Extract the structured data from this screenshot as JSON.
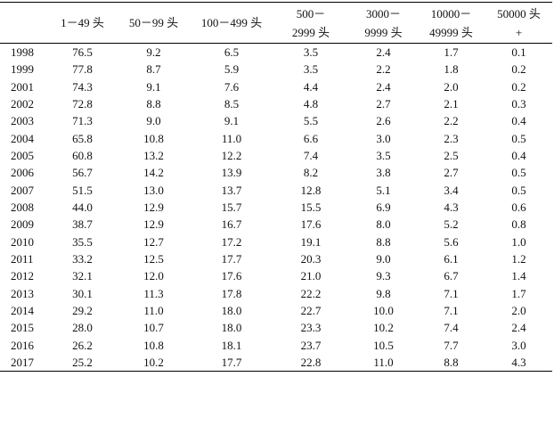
{
  "table": {
    "header": [
      [
        "1－49 头"
      ],
      [
        "50－99 头"
      ],
      [
        "100－499 头"
      ],
      [
        "500－",
        "2999 头"
      ],
      [
        "3000－",
        "9999 头"
      ],
      [
        "10000－",
        "49999 头"
      ],
      [
        "50000 头",
        "+"
      ]
    ],
    "rows": [
      [
        "1998",
        "76.5",
        "9.2",
        "6.5",
        "3.5",
        "2.4",
        "1.7",
        "0.1"
      ],
      [
        "1999",
        "77.8",
        "8.7",
        "5.9",
        "3.5",
        "2.2",
        "1.8",
        "0.2"
      ],
      [
        "2001",
        "74.3",
        "9.1",
        "7.6",
        "4.4",
        "2.4",
        "2.0",
        "0.2"
      ],
      [
        "2002",
        "72.8",
        "8.8",
        "8.5",
        "4.8",
        "2.7",
        "2.1",
        "0.3"
      ],
      [
        "2003",
        "71.3",
        "9.0",
        "9.1",
        "5.5",
        "2.6",
        "2.2",
        "0.4"
      ],
      [
        "2004",
        "65.8",
        "10.8",
        "11.0",
        "6.6",
        "3.0",
        "2.3",
        "0.5"
      ],
      [
        "2005",
        "60.8",
        "13.2",
        "12.2",
        "7.4",
        "3.5",
        "2.5",
        "0.4"
      ],
      [
        "2006",
        "56.7",
        "14.2",
        "13.9",
        "8.2",
        "3.8",
        "2.7",
        "0.5"
      ],
      [
        "2007",
        "51.5",
        "13.0",
        "13.7",
        "12.8",
        "5.1",
        "3.4",
        "0.5"
      ],
      [
        "2008",
        "44.0",
        "12.9",
        "15.7",
        "15.5",
        "6.9",
        "4.3",
        "0.6"
      ],
      [
        "2009",
        "38.7",
        "12.9",
        "16.7",
        "17.6",
        "8.0",
        "5.2",
        "0.8"
      ],
      [
        "2010",
        "35.5",
        "12.7",
        "17.2",
        "19.1",
        "8.8",
        "5.6",
        "1.0"
      ],
      [
        "2011",
        "33.2",
        "12.5",
        "17.7",
        "20.3",
        "9.0",
        "6.1",
        "1.2"
      ],
      [
        "2012",
        "32.1",
        "12.0",
        "17.6",
        "21.0",
        "9.3",
        "6.7",
        "1.4"
      ],
      [
        "2013",
        "30.1",
        "11.3",
        "17.8",
        "22.2",
        "9.8",
        "7.1",
        "1.7"
      ],
      [
        "2014",
        "29.2",
        "11.0",
        "18.0",
        "22.7",
        "10.0",
        "7.1",
        "2.0"
      ],
      [
        "2015",
        "28.0",
        "10.7",
        "18.0",
        "23.3",
        "10.2",
        "7.4",
        "2.4"
      ],
      [
        "2016",
        "26.2",
        "10.8",
        "18.1",
        "23.7",
        "10.5",
        "7.7",
        "3.0"
      ],
      [
        "2017",
        "25.2",
        "10.2",
        "17.7",
        "22.8",
        "11.0",
        "8.8",
        "4.3"
      ]
    ]
  }
}
